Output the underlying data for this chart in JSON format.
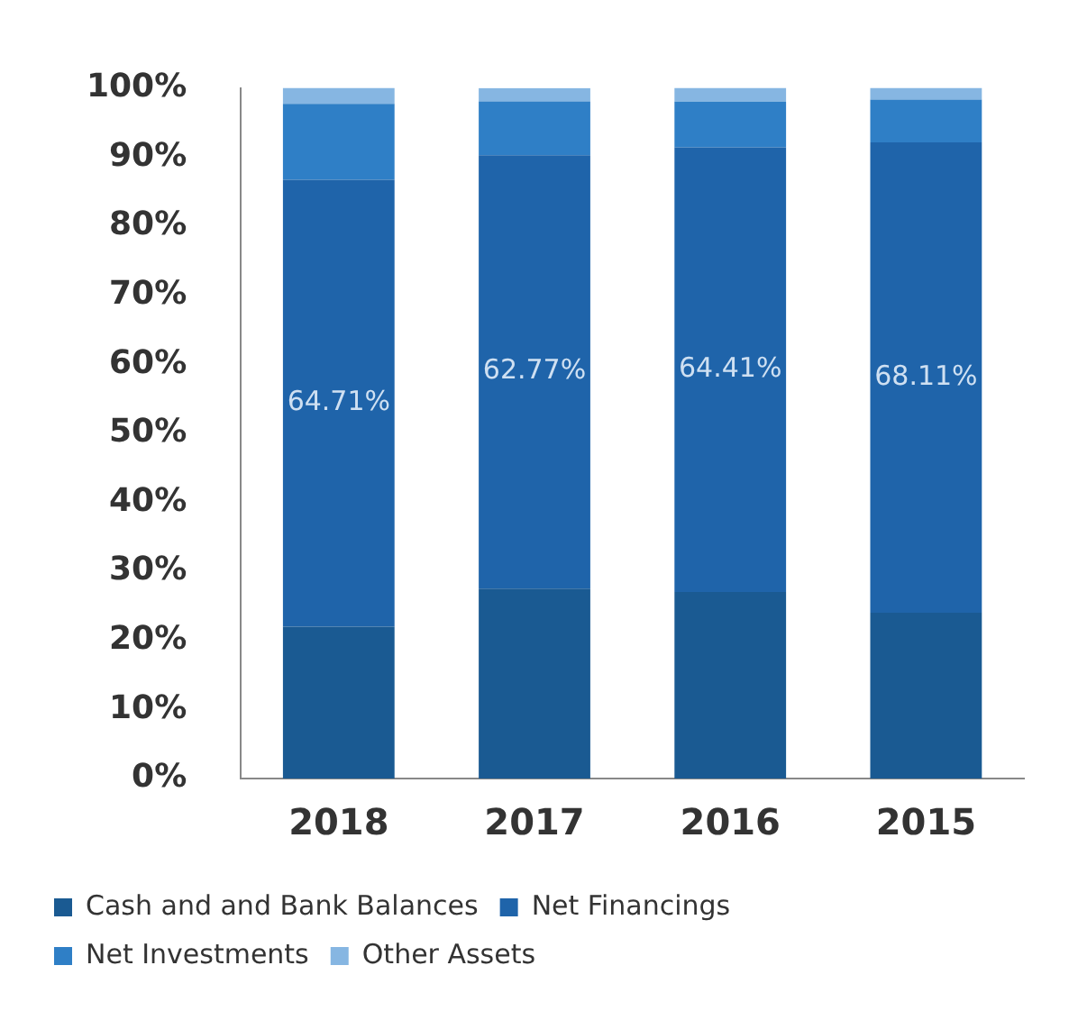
{
  "chart_data": {
    "type": "bar",
    "stacked": true,
    "categories": [
      "2018",
      "2017",
      "2016",
      "2015"
    ],
    "series": [
      {
        "name": "Cash and and Bank Balances",
        "color": "#1a5a92",
        "values": [
          22,
          27.5,
          27,
          24
        ]
      },
      {
        "name": "Net Financings",
        "color": "#1f64aa",
        "values": [
          64.71,
          62.77,
          64.41,
          68.11
        ],
        "value_labels": [
          "64.71%",
          "62.77%",
          "64.41%",
          "68.11%"
        ]
      },
      {
        "name": "Net Investments",
        "color": "#2f7fc6",
        "values": [
          11,
          7.8,
          6.6,
          6.2
        ]
      },
      {
        "name": "Other Assets",
        "color": "#86b6e2",
        "values": [
          2.3,
          1.9,
          2,
          1.7
        ]
      }
    ],
    "ylim": [
      0,
      100
    ],
    "yticks": [
      {
        "value": 0,
        "label": "0%"
      },
      {
        "value": 10,
        "label": "10%"
      },
      {
        "value": 20,
        "label": "20%"
      },
      {
        "value": 30,
        "label": "30%"
      },
      {
        "value": 40,
        "label": "40%"
      },
      {
        "value": 50,
        "label": "50%"
      },
      {
        "value": 60,
        "label": "60%"
      },
      {
        "value": 70,
        "label": "70%"
      },
      {
        "value": 80,
        "label": "80%"
      },
      {
        "value": 90,
        "label": "90%"
      },
      {
        "value": 100,
        "label": "100%"
      }
    ],
    "grid": false,
    "legend": "bottom"
  }
}
